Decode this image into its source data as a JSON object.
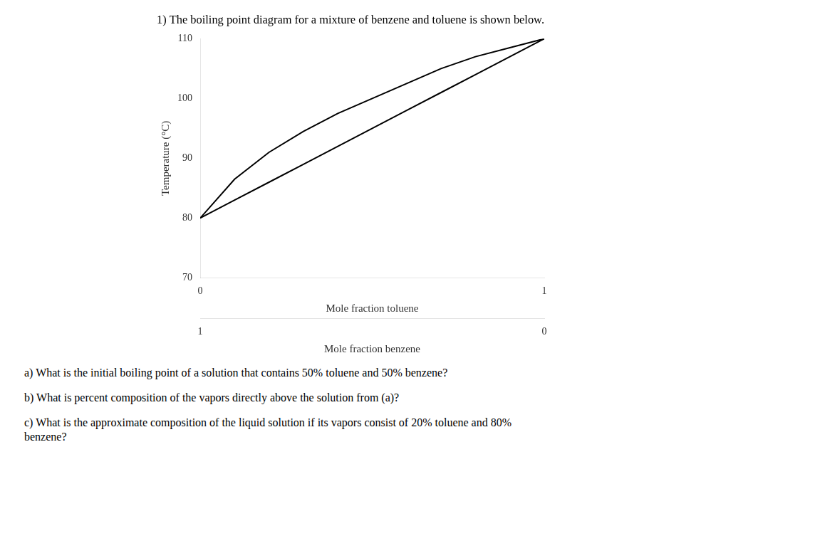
{
  "chart_data": {
    "type": "line",
    "title": "1) The boiling point diagram for a mixture of benzene and toluene is shown below.",
    "xlabel": "Mole fraction toluene",
    "x2label": "Mole fraction benzene",
    "ylabel": "Temperature (°C)",
    "x": [
      0.0,
      0.1,
      0.2,
      0.3,
      0.4,
      0.5,
      0.6,
      0.7,
      0.8,
      0.9,
      1.0
    ],
    "series": [
      {
        "color": "#000000",
        "values": [
          80.0,
          83.0,
          86.0,
          89.0,
          92.0,
          95.0,
          98.0,
          101.0,
          104.0,
          107.0,
          110.0
        ]
      },
      {
        "color": "#000000",
        "values": [
          80.0,
          86.5,
          91.0,
          94.5,
          97.5,
          100.0,
          102.5,
          105.0,
          107.0,
          108.5,
          110.0
        ]
      }
    ],
    "xlim": [
      0,
      1
    ],
    "xticks": [
      0,
      1
    ],
    "x2lim": [
      1,
      0
    ],
    "x2ticks": [
      1,
      0
    ],
    "ylim": [
      70,
      110
    ],
    "yticks": [
      70,
      80,
      90,
      100,
      110
    ],
    "grid": false,
    "annotations": [
      "a) What is the initial boiling point of a solution that contains 50% toluene and 50% benzene?",
      "b) What is percent composition of the vapors directly above the solution from (a)?",
      "c) What is the approximate composition of the liquid solution if its vapors consist of 20% toluene and 80%\nbenzene?"
    ]
  }
}
